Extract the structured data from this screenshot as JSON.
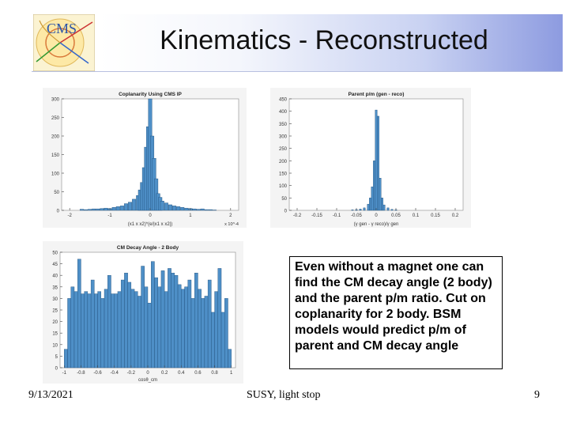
{
  "slide": {
    "title": "Kinematics - Reconstructed",
    "body_text": "Even without a magnet one can find the CM decay angle (2 body) and the parent p/m ratio. Cut on coplanarity for 2 body. BSM models would predict p/m of parent and CM decay angle",
    "date": "9/13/2021",
    "footer": "SUSY, light stop",
    "page_number": "9",
    "logo_text": "CMS"
  },
  "colors": {
    "bar": "#4e8fc7",
    "bar_edge": "#1f4f7a",
    "plot_bg": "#ffffff",
    "header_gradient_end": "#8d9be0"
  },
  "chart_data": [
    {
      "type": "bar",
      "title": "Coplanarity Using CMS IP",
      "xlabel": "(x1 x x2)*(e/|x1 x x2|)",
      "x_exponent": "x 10^-4",
      "ylim": [
        0,
        300
      ],
      "yticks": [
        0,
        50,
        100,
        150,
        200,
        250,
        300
      ],
      "xticks": [
        -2,
        -1,
        0,
        1,
        2
      ],
      "xrange": [
        -2.2,
        2.2
      ],
      "x": [
        -1.7,
        -1.6,
        -1.5,
        -1.4,
        -1.3,
        -1.2,
        -1.1,
        -1.0,
        -0.9,
        -0.8,
        -0.7,
        -0.6,
        -0.5,
        -0.4,
        -0.3,
        -0.25,
        -0.2,
        -0.15,
        -0.1,
        -0.05,
        0.0,
        0.05,
        0.1,
        0.15,
        0.2,
        0.25,
        0.3,
        0.4,
        0.5,
        0.6,
        0.7,
        0.8,
        0.9,
        1.0,
        1.1,
        1.2,
        1.3,
        1.4,
        1.5,
        1.6
      ],
      "values": [
        3,
        2,
        3,
        4,
        4,
        5,
        6,
        5,
        8,
        10,
        12,
        18,
        22,
        30,
        40,
        55,
        75,
        115,
        170,
        225,
        300,
        200,
        140,
        85,
        45,
        35,
        25,
        20,
        15,
        12,
        10,
        8,
        6,
        5,
        4,
        3,
        4,
        2,
        2,
        1
      ]
    },
    {
      "type": "bar",
      "title": "Parent p/m (gen - reco)",
      "xlabel": "(γ gen - γ reco)/γ gen",
      "ylim": [
        0,
        450
      ],
      "yticks": [
        0,
        50,
        100,
        150,
        200,
        250,
        300,
        350,
        400,
        450
      ],
      "xticks": [
        -0.2,
        -0.15,
        -0.1,
        -0.05,
        0,
        0.05,
        0.1,
        0.15,
        0.2
      ],
      "xrange": [
        -0.22,
        0.22
      ],
      "x": [
        -0.06,
        -0.05,
        -0.04,
        -0.03,
        -0.02,
        -0.015,
        -0.01,
        -0.005,
        0.0,
        0.005,
        0.01,
        0.015,
        0.02,
        0.03,
        0.04,
        0.05
      ],
      "values": [
        2,
        3,
        5,
        10,
        25,
        50,
        95,
        200,
        405,
        380,
        130,
        50,
        22,
        10,
        4,
        2
      ]
    },
    {
      "type": "bar",
      "title": "CM Decay Angle - 2 Body",
      "xlabel": "cosθ_cm",
      "ylim": [
        0,
        50
      ],
      "yticks": [
        0,
        5,
        10,
        15,
        20,
        25,
        30,
        35,
        40,
        45,
        50
      ],
      "xticks": [
        -1,
        -0.8,
        -0.6,
        -0.4,
        -0.2,
        0,
        0.2,
        0.4,
        0.6,
        0.8,
        1
      ],
      "xrange": [
        -1.05,
        1.05
      ],
      "x": [
        -0.98,
        -0.94,
        -0.9,
        -0.86,
        -0.82,
        -0.78,
        -0.74,
        -0.7,
        -0.66,
        -0.62,
        -0.58,
        -0.54,
        -0.5,
        -0.46,
        -0.42,
        -0.38,
        -0.34,
        -0.3,
        -0.26,
        -0.22,
        -0.18,
        -0.14,
        -0.1,
        -0.06,
        -0.02,
        0.02,
        0.06,
        0.1,
        0.14,
        0.18,
        0.22,
        0.26,
        0.3,
        0.34,
        0.38,
        0.42,
        0.46,
        0.5,
        0.54,
        0.58,
        0.62,
        0.66,
        0.7,
        0.74,
        0.78,
        0.82,
        0.86,
        0.9,
        0.94,
        0.98
      ],
      "values": [
        8,
        30,
        35,
        33,
        47,
        32,
        33,
        32,
        38,
        32,
        33,
        30,
        34,
        40,
        32,
        32,
        33,
        38,
        41,
        37,
        34,
        33,
        31,
        44,
        35,
        28,
        46,
        39,
        35,
        42,
        33,
        43,
        41,
        40,
        36,
        34,
        35,
        38,
        30,
        41,
        34,
        30,
        31,
        38,
        24,
        33,
        43,
        24,
        30,
        8
      ]
    }
  ]
}
